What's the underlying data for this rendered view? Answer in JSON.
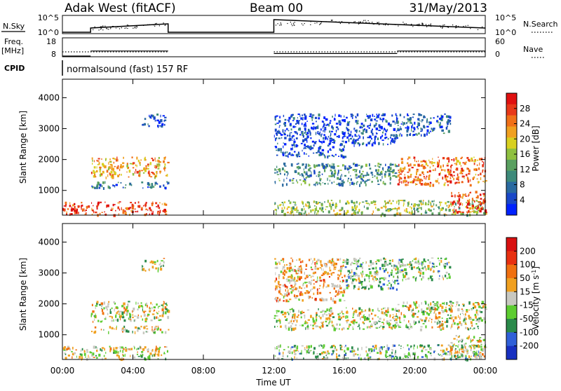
{
  "header": {
    "title_left": "Adak West (fitACF)",
    "title_center": "Beam 00",
    "title_right": "31/May/2013"
  },
  "top_panels": {
    "nsky_label": "N.Sky",
    "nsky_ticks": [
      "10^5",
      "10^0"
    ],
    "nsearch_label": "N.Search",
    "nsearch_ticks": [
      "10^5",
      "10^0"
    ],
    "freq_label": "Freq.",
    "freq_units": "[MHz]",
    "freq_ticks": [
      "18",
      "8"
    ],
    "nave_label": "Nave",
    "nave_ticks": [
      "60",
      "0"
    ],
    "cpid_label": "CPID",
    "cpid_text": "normalsound (fast) 157 RF",
    "data_gap_hours": [
      6.0,
      12.0
    ],
    "freq_segments": [
      {
        "start_hour": 0.0,
        "end_hour": 1.6,
        "freq_mhz": 8.0
      },
      {
        "start_hour": 1.6,
        "end_hour": 6.0,
        "freq_mhz": 12.0
      },
      {
        "start_hour": 12.0,
        "end_hour": 19.0,
        "freq_mhz": 10.0
      },
      {
        "start_hour": 19.0,
        "end_hour": 24.0,
        "freq_mhz": 12.0
      }
    ]
  },
  "chart_data": [
    {
      "type": "heatmap",
      "name": "power",
      "ylabel": "Slant Range [km]",
      "ylim": [
        200,
        4600
      ],
      "yticks": [
        1000,
        2000,
        3000,
        4000
      ],
      "xlim_hours": [
        0,
        24
      ],
      "colorbar": {
        "label": "Power [dB]",
        "ticks": [
          "4",
          "8",
          "12",
          "16",
          "20",
          "24",
          "28"
        ],
        "colors": [
          "#0022ff",
          "#1a48c8",
          "#2a6aa0",
          "#3d8a7a",
          "#5aa060",
          "#8fc040",
          "#d8d020",
          "#f0a020",
          "#f07018",
          "#e83818",
          "#e01010"
        ]
      },
      "regions": [
        {
          "x0": 0.0,
          "x1": 6.0,
          "y0": 230,
          "y1": 650,
          "level": 9
        },
        {
          "x0": 1.6,
          "x1": 6.0,
          "y0": 1450,
          "y1": 2100,
          "level": 7
        },
        {
          "x0": 1.6,
          "x1": 6.0,
          "y0": 1100,
          "y1": 1300,
          "level": 2
        },
        {
          "x0": 4.5,
          "x1": 5.8,
          "y0": 3100,
          "y1": 3500,
          "level": 1
        },
        {
          "x0": 12.0,
          "x1": 24.0,
          "y0": 230,
          "y1": 700,
          "level": 5
        },
        {
          "x0": 12.0,
          "x1": 19.0,
          "y0": 1200,
          "y1": 1900,
          "level": 3
        },
        {
          "x0": 12.0,
          "x1": 16.0,
          "y0": 2100,
          "y1": 3500,
          "level": 1
        },
        {
          "x0": 16.0,
          "x1": 19.0,
          "y0": 2500,
          "y1": 3500,
          "level": 1
        },
        {
          "x0": 19.0,
          "x1": 24.0,
          "y0": 1200,
          "y1": 2100,
          "level": 8
        },
        {
          "x0": 19.0,
          "x1": 22.0,
          "y0": 2800,
          "y1": 3500,
          "level": 2
        },
        {
          "x0": 22.0,
          "x1": 24.0,
          "y0": 300,
          "y1": 1000,
          "level": 9
        }
      ]
    },
    {
      "type": "heatmap",
      "name": "velocity",
      "ylabel": "Slant Range [km]",
      "xlabel": "Time UT",
      "ylim": [
        200,
        4600
      ],
      "yticks": [
        1000,
        2000,
        3000,
        4000
      ],
      "xlim_hours": [
        0,
        24
      ],
      "xticks": [
        "00:00",
        "04:00",
        "08:00",
        "12:00",
        "16:00",
        "20:00",
        "00:00"
      ],
      "colorbar": {
        "label": "Velocity [m s-1]",
        "ticks": [
          "200",
          "100",
          "50",
          "15",
          "-15",
          "-50",
          "-100",
          "-200"
        ],
        "colors": [
          "#1830c0",
          "#3060d8",
          "#2a8a4a",
          "#5ccc30",
          "#c8c8c0",
          "#f0a020",
          "#f07010",
          "#e83010",
          "#d81010"
        ]
      },
      "regions": [
        {
          "x0": 0.0,
          "x1": 6.0,
          "y0": 230,
          "y1": 650,
          "level": 4
        },
        {
          "x0": 1.6,
          "x1": 6.0,
          "y0": 1450,
          "y1": 2100,
          "level": 4
        },
        {
          "x0": 1.6,
          "x1": 6.0,
          "y0": 1100,
          "y1": 1300,
          "level": 4
        },
        {
          "x0": 4.5,
          "x1": 5.8,
          "y0": 3100,
          "y1": 3500,
          "level": 4
        },
        {
          "x0": 12.0,
          "x1": 24.0,
          "y0": 230,
          "y1": 700,
          "level": 3
        },
        {
          "x0": 12.0,
          "x1": 19.0,
          "y0": 1200,
          "y1": 1900,
          "level": 4
        },
        {
          "x0": 12.0,
          "x1": 16.0,
          "y0": 2100,
          "y1": 3500,
          "level": 5
        },
        {
          "x0": 16.0,
          "x1": 19.0,
          "y0": 2500,
          "y1": 3500,
          "level": 3
        },
        {
          "x0": 19.0,
          "x1": 24.0,
          "y0": 1200,
          "y1": 2100,
          "level": 4
        },
        {
          "x0": 19.0,
          "x1": 22.0,
          "y0": 2800,
          "y1": 3500,
          "level": 3
        },
        {
          "x0": 22.0,
          "x1": 24.0,
          "y0": 300,
          "y1": 1000,
          "level": 4
        }
      ]
    }
  ]
}
